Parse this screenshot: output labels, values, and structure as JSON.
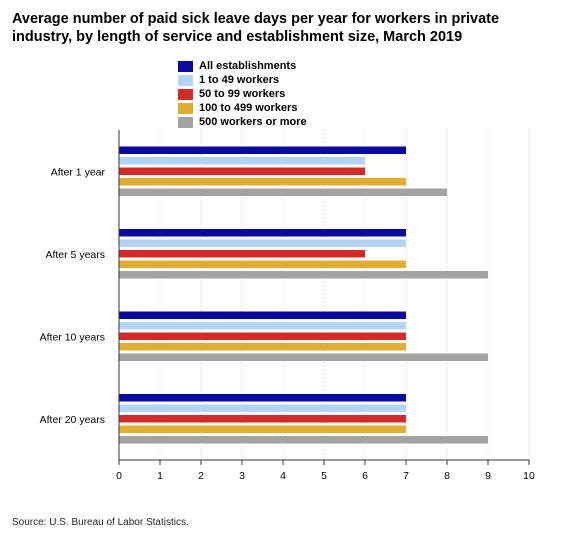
{
  "chart_data": {
    "type": "bar",
    "orientation": "horizontal",
    "title": "Average number of paid sick leave days per year for workers in private industry, by length of service and establishment size, March 2019",
    "xlabel": "",
    "ylabel": "",
    "categories": [
      "After 1 year",
      "After 5 years",
      "After 10 years",
      "After 20 years"
    ],
    "series": [
      {
        "name": "All establishments",
        "color": "#0a0a9e",
        "values": [
          7,
          7,
          7,
          7
        ]
      },
      {
        "name": "1 to 49 workers",
        "color": "#b3d4f5",
        "values": [
          6,
          7,
          7,
          7
        ]
      },
      {
        "name": "50 to 99 workers",
        "color": "#d42a2a",
        "values": [
          6,
          6,
          7,
          7
        ]
      },
      {
        "name": "100 to 499 workers",
        "color": "#e0ad32",
        "values": [
          7,
          7,
          7,
          7
        ]
      },
      {
        "name": "500 workers or more",
        "color": "#a3a3a3",
        "values": [
          8,
          9,
          9,
          9
        ]
      }
    ],
    "xlim": [
      0,
      10
    ],
    "xticks": [
      "0",
      "1",
      "2",
      "3",
      "4",
      "5",
      "6",
      "7",
      "8",
      "9",
      "10"
    ],
    "grid": "vertical-dotted",
    "legend_placement": "top"
  },
  "source": "Source: U.S. Bureau of Labor Statistics."
}
